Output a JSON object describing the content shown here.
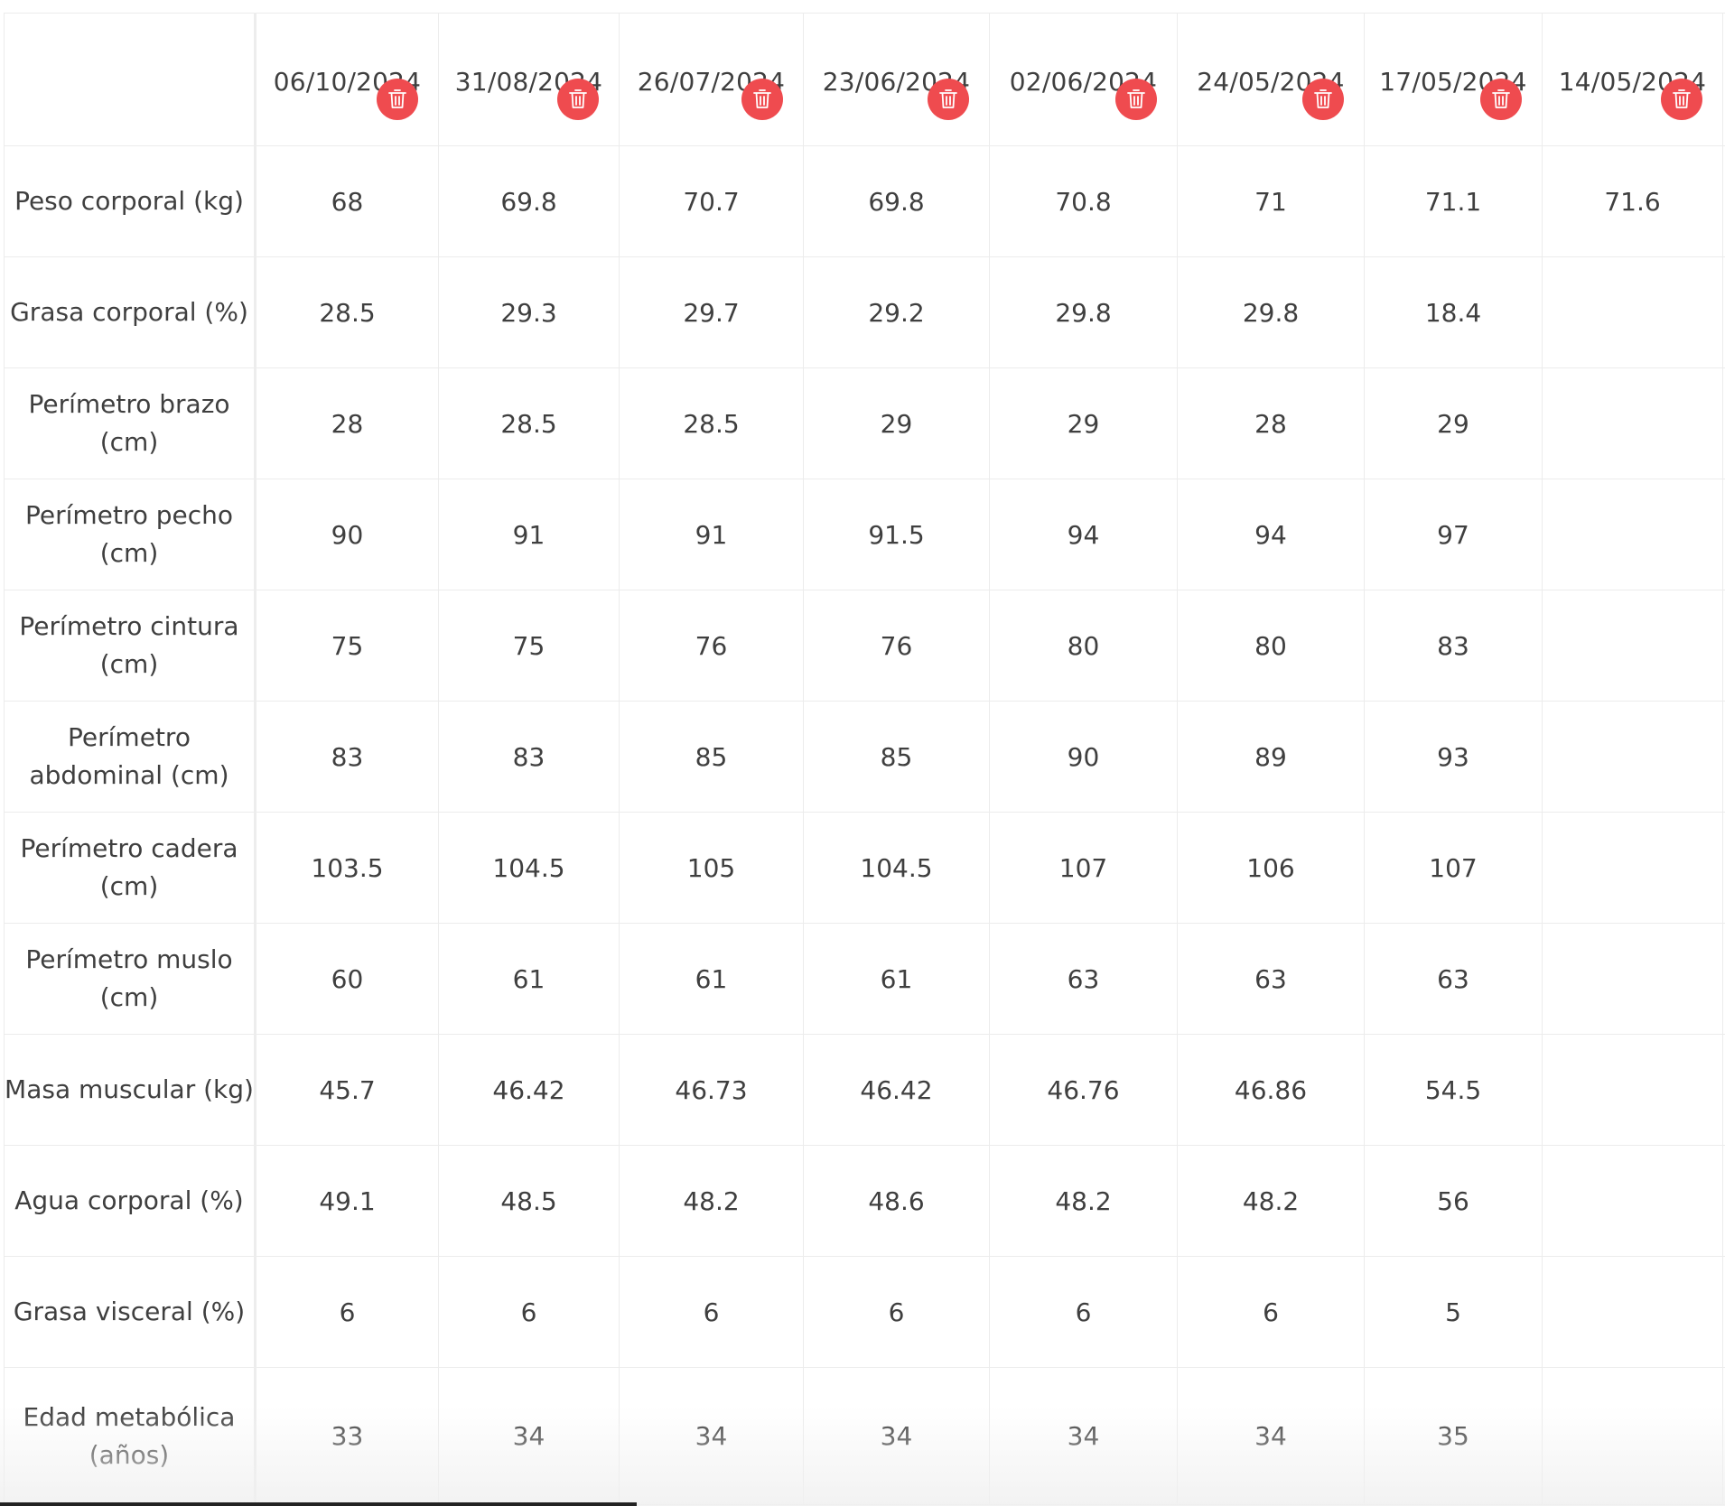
{
  "dates": [
    "06/10/2024",
    "31/08/2024",
    "26/07/2024",
    "23/06/2024",
    "02/06/2024",
    "24/05/2024",
    "17/05/2024",
    "14/05/2024"
  ],
  "delete_icon": "trash-icon",
  "colors": {
    "delete_button": "#ef4b4f",
    "border": "#ececec",
    "text": "#3f3f3f"
  },
  "rows": [
    {
      "label": "Peso corporal (kg)",
      "values": [
        "68",
        "69.8",
        "70.7",
        "69.8",
        "70.8",
        "71",
        "71.1",
        "71.6"
      ]
    },
    {
      "label": "Grasa corporal (%)",
      "values": [
        "28.5",
        "29.3",
        "29.7",
        "29.2",
        "29.8",
        "29.8",
        "18.4",
        ""
      ]
    },
    {
      "label": "Perímetro brazo (cm)",
      "values": [
        "28",
        "28.5",
        "28.5",
        "29",
        "29",
        "28",
        "29",
        ""
      ]
    },
    {
      "label": "Perímetro pecho (cm)",
      "values": [
        "90",
        "91",
        "91",
        "91.5",
        "94",
        "94",
        "97",
        ""
      ]
    },
    {
      "label": "Perímetro cintura (cm)",
      "values": [
        "75",
        "75",
        "76",
        "76",
        "80",
        "80",
        "83",
        ""
      ]
    },
    {
      "label": "Perímetro abdominal (cm)",
      "values": [
        "83",
        "83",
        "85",
        "85",
        "90",
        "89",
        "93",
        ""
      ]
    },
    {
      "label": "Perímetro cadera (cm)",
      "values": [
        "103.5",
        "104.5",
        "105",
        "104.5",
        "107",
        "106",
        "107",
        ""
      ]
    },
    {
      "label": "Perímetro muslo (cm)",
      "values": [
        "60",
        "61",
        "61",
        "61",
        "63",
        "63",
        "63",
        ""
      ]
    },
    {
      "label": "Masa muscular (kg)",
      "values": [
        "45.7",
        "46.42",
        "46.73",
        "46.42",
        "46.76",
        "46.86",
        "54.5",
        ""
      ]
    },
    {
      "label": "Agua corporal (%)",
      "values": [
        "49.1",
        "48.5",
        "48.2",
        "48.6",
        "48.2",
        "48.2",
        "56",
        ""
      ]
    },
    {
      "label": "Grasa visceral (%)",
      "values": [
        "6",
        "6",
        "6",
        "6",
        "6",
        "6",
        "5",
        ""
      ]
    },
    {
      "label": "Edad metabólica (años)",
      "values": [
        "33",
        "34",
        "34",
        "34",
        "34",
        "34",
        "35",
        ""
      ]
    }
  ]
}
